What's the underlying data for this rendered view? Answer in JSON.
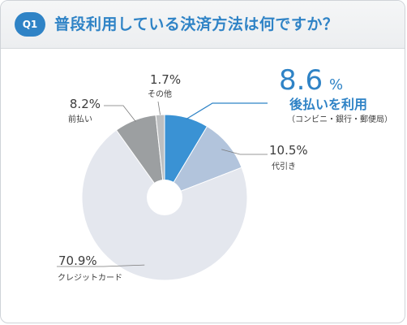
{
  "header": {
    "badge": "Q1",
    "title": "普段利用している決済方法は何ですか？"
  },
  "chart_data": {
    "type": "pie",
    "title": "普段利用している決済方法は何ですか？",
    "slices": [
      {
        "label": "後払いを利用",
        "sublabel": "（コンビニ・銀行・郵便局）",
        "value": 8.6,
        "display": "8.6",
        "color": "#3a92d4",
        "highlight": true
      },
      {
        "label": "代引き",
        "value": 10.5,
        "display": "10.5%",
        "color": "#b2c4dc"
      },
      {
        "label": "クレジットカード",
        "value": 70.9,
        "display": "70.9%",
        "color": "#e4e7ee"
      },
      {
        "label": "前払い",
        "value": 8.2,
        "display": "8.2%",
        "color": "#9c9fa1"
      },
      {
        "label": "その他",
        "value": 1.7,
        "display": "1.7%",
        "color": "#bdbfc1"
      }
    ],
    "percent_sign": "%",
    "unit": "%",
    "donut": true
  }
}
